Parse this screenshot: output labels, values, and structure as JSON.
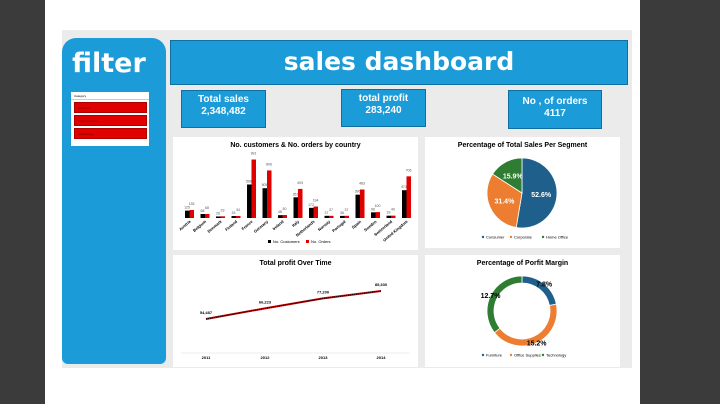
{
  "filter": {
    "title": "filter",
    "slicer_header": "Category",
    "items": [
      "Furniture",
      "Office Supplies",
      "Technology"
    ]
  },
  "header": {
    "title": "sales dashboard"
  },
  "kpis": [
    {
      "label": "Total sales",
      "value": "2,348,482"
    },
    {
      "label": "total profit",
      "value": "283,240"
    },
    {
      "label": "No , of orders",
      "value": "4117"
    }
  ],
  "chart_data": [
    {
      "type": "bar",
      "title": "No. customers & No. orders by country",
      "categories": [
        "Austria",
        "Belgium",
        "Denmark",
        "Finland",
        "France",
        "Germany",
        "Ireland",
        "Italy",
        "Netherlands",
        "Norway",
        "Portugal",
        "Spain",
        "Sweden",
        "Switzerland",
        "United Kingdom"
      ],
      "series": [
        {
          "name": "No. Customers",
          "color": "#000000",
          "values": [
            125,
            68,
            26,
            33,
            568,
            505,
            48,
            351,
            172,
            37,
            36,
            396,
            96,
            39,
            471
          ]
        },
        {
          "name": "No. Orders",
          "color": "#e00000",
          "values": [
            135,
            68,
            29,
            34,
            991,
            806,
            50,
            493,
            194,
            37,
            37,
            483,
            100,
            40,
            706
          ]
        }
      ],
      "legend": "bottom"
    },
    {
      "type": "pie",
      "title": "Percentage of Total Sales Per Segment",
      "labels": [
        "Consumer",
        "Corporate",
        "Home Office"
      ],
      "values": [
        52.6,
        31.4,
        15.9
      ],
      "value_labels": [
        "52.6%",
        "31.4%",
        "15.9%"
      ],
      "colors": [
        "#1f5f8b",
        "#ed7d31",
        "#2e7d32"
      ],
      "legend": "bottom"
    },
    {
      "type": "line",
      "title": "Total profit Over Time",
      "x": [
        "2011",
        "2012",
        "2013",
        "2014"
      ],
      "values": [
        54487,
        66223,
        77200,
        85330
      ],
      "value_labels": [
        "54,487",
        "66,223",
        "77,200",
        "85,330"
      ],
      "color": "#c00000"
    },
    {
      "type": "pie",
      "title": "Percentage of Porfit Margin",
      "donut": true,
      "labels": [
        "Furniture",
        "Office Supplies",
        "Technology"
      ],
      "values": [
        7.8,
        15.2,
        12.7
      ],
      "value_labels": [
        "7.8%",
        "15.2%",
        "12.7%"
      ],
      "colors": [
        "#1f5f8b",
        "#ed7d31",
        "#2e7d32"
      ],
      "legend": "bottom"
    }
  ]
}
